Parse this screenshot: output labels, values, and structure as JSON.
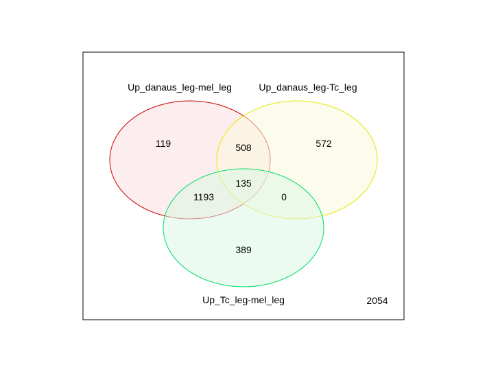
{
  "diagram": {
    "type": "venn",
    "sets": [
      {
        "key": "A",
        "label": "Up_danaus_leg-mel_leg",
        "stroke": "#cc0000",
        "fill": "#f9e0e0"
      },
      {
        "key": "B",
        "label": "Up_danaus_leg-Tc_leg",
        "stroke": "#e6e600",
        "fill": "#fafadc"
      },
      {
        "key": "C",
        "label": "Up_Tc_leg-mel_leg",
        "stroke": "#00dd66",
        "fill": "#dcf7e6"
      }
    ],
    "regions": {
      "A_only": "119",
      "A_and_B": "508",
      "B_only": "572",
      "A_B_C": "135",
      "A_and_C": "1193",
      "B_and_C": "0",
      "C_only": "389",
      "outside": "2054"
    }
  }
}
